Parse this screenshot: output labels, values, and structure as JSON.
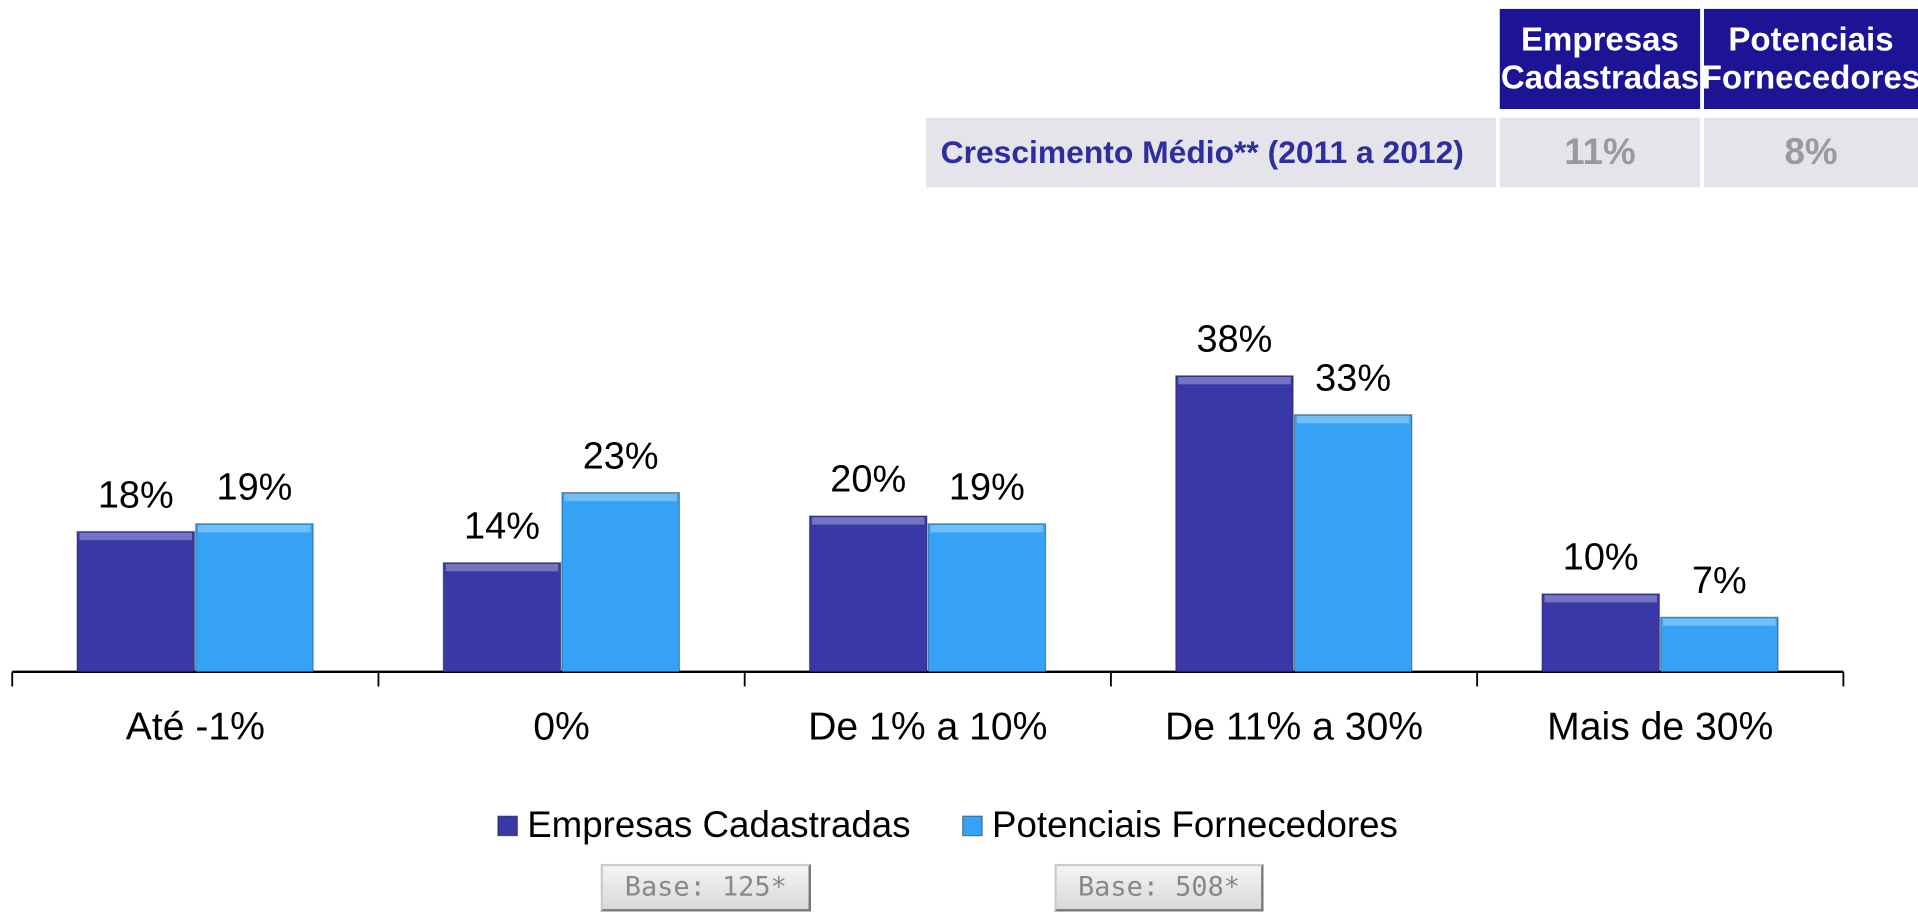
{
  "chart_data": {
    "type": "bar",
    "categories": [
      "Até -1%",
      "0%",
      "De 1% a 10%",
      "De 11% a 30%",
      "Mais de 30%"
    ],
    "series": [
      {
        "name": "Empresas Cadastradas",
        "color": "#3a38a6",
        "values": [
          18,
          14,
          20,
          38,
          10
        ],
        "value_labels": [
          "18%",
          "14%",
          "20%",
          "38%",
          "10%"
        ]
      },
      {
        "name": "Potenciais Fornecedores",
        "color": "#36a2f6",
        "values": [
          19,
          23,
          19,
          33,
          7
        ],
        "value_labels": [
          "19%",
          "23%",
          "19%",
          "33%",
          "7%"
        ]
      }
    ],
    "bases": [
      "Base: 125*",
      "Base: 508*"
    ]
  },
  "table": {
    "columns": [
      "Empresas Cadastradas",
      "Potenciais Fornecedores"
    ],
    "rows": [
      [
        "Crescimento Médio** (2011 a 2012)",
        "11%",
        "8%"
      ]
    ]
  }
}
